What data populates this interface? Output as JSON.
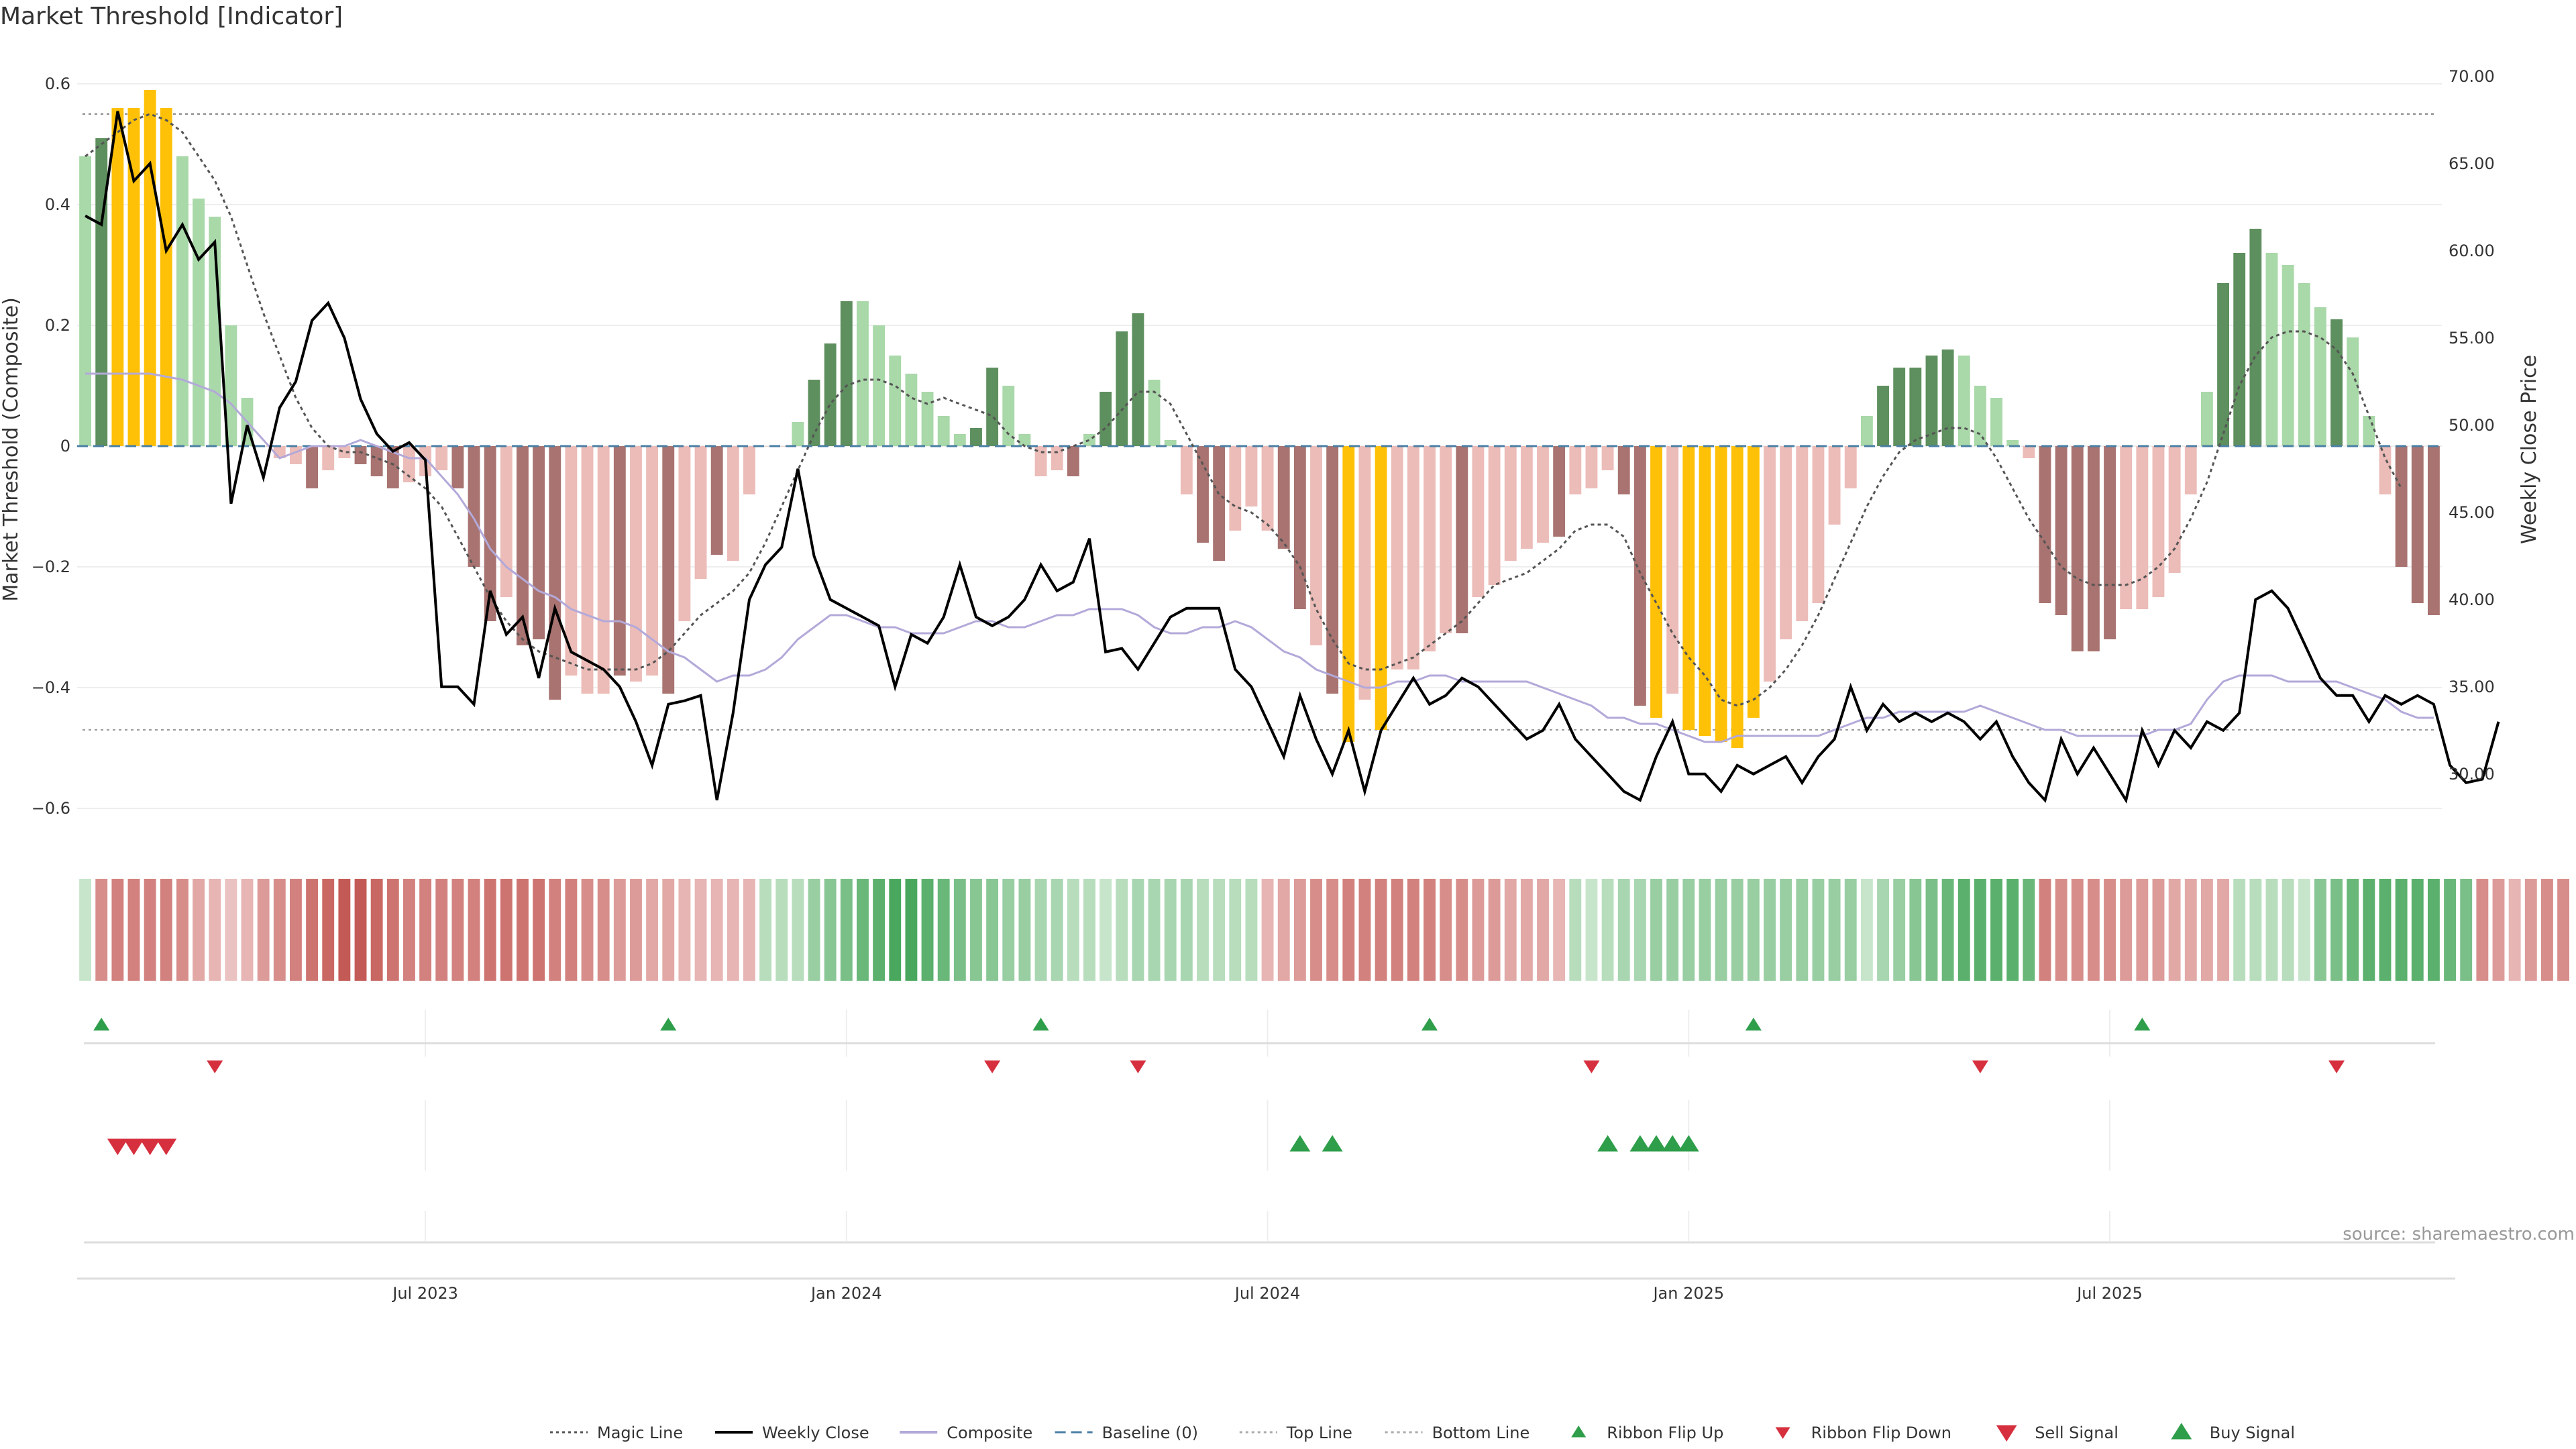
{
  "title": "Market Threshold [Indicator]",
  "source_note": "source: sharemaestro.com",
  "colors": {
    "strong_green": "#5e8f5e",
    "light_green": "#a9d8a9",
    "strong_red": "#a87370",
    "light_red": "#ecbcb8",
    "extreme": "#ffc107",
    "magic": "#555555",
    "close": "#000000",
    "composite": "#b3a9d9",
    "baseline": "#4a7fa5",
    "guide": "#888888",
    "up_marker": "#2e9e4a",
    "down_marker": "#d6303f"
  },
  "chart_data": {
    "type": "bar",
    "title": "Market Threshold [Indicator]",
    "xlabel": "",
    "ylabel": "Market Threshold (Composite)",
    "ylabel_right": "Weekly Close Price",
    "ylim": [
      -0.65,
      0.65
    ],
    "yticks": [
      -0.6,
      -0.4,
      -0.2,
      0,
      0.2,
      0.4,
      0.6
    ],
    "ytick_labels": [
      "−0.6",
      "−0.4",
      "−0.2",
      "0",
      "0.2",
      "0.4",
      "0.6"
    ],
    "ylim_right": [
      26.3,
      71.3
    ],
    "yticks_right": [
      30,
      35,
      40,
      45,
      50,
      55,
      60,
      65,
      70
    ],
    "ytick_labels_right": [
      "30.00",
      "35.00",
      "40.00",
      "45.00",
      "50.00",
      "55.00",
      "60.00",
      "65.00",
      "70.00"
    ],
    "x_start": "2023-02-06",
    "x_end": "2025-10-27",
    "xticks": [
      {
        "label": "Jul 2023",
        "week": 21
      },
      {
        "label": "Jan 2024",
        "week": 47
      },
      {
        "label": "Jul 2024",
        "week": 73
      },
      {
        "label": "Jan 2025",
        "week": 99
      },
      {
        "label": "Jul 2025",
        "week": 125
      }
    ],
    "top_line": 0.55,
    "bottom_line": -0.47,
    "bars": [
      0.48,
      0.51,
      0.56,
      0.56,
      0.59,
      0.56,
      0.48,
      0.41,
      0.38,
      0.2,
      0.08,
      0.0,
      -0.02,
      -0.03,
      -0.07,
      -0.04,
      -0.02,
      -0.03,
      -0.05,
      -0.07,
      -0.06,
      -0.05,
      -0.04,
      -0.07,
      -0.2,
      -0.29,
      -0.25,
      -0.33,
      -0.32,
      -0.42,
      -0.38,
      -0.41,
      -0.41,
      -0.38,
      -0.39,
      -0.38,
      -0.41,
      -0.29,
      -0.22,
      -0.18,
      -0.19,
      -0.08,
      0.0,
      0.0,
      0.04,
      0.11,
      0.17,
      0.24,
      0.24,
      0.2,
      0.15,
      0.12,
      0.09,
      0.05,
      0.02,
      0.03,
      0.13,
      0.1,
      0.02,
      -0.05,
      -0.04,
      -0.05,
      0.02,
      0.09,
      0.19,
      0.22,
      0.11,
      0.01,
      -0.08,
      -0.16,
      -0.19,
      -0.14,
      -0.1,
      -0.14,
      -0.17,
      -0.27,
      -0.33,
      -0.41,
      -0.49,
      -0.42,
      -0.47,
      -0.37,
      -0.37,
      -0.34,
      -0.31,
      -0.31,
      -0.25,
      -0.23,
      -0.19,
      -0.17,
      -0.16,
      -0.15,
      -0.08,
      -0.07,
      -0.04,
      -0.08,
      -0.43,
      -0.45,
      -0.41,
      -0.47,
      -0.48,
      -0.49,
      -0.5,
      -0.45,
      -0.39,
      -0.32,
      -0.29,
      -0.26,
      -0.13,
      -0.07,
      0.05,
      0.1,
      0.13,
      0.13,
      0.15,
      0.16,
      0.15,
      0.1,
      0.08,
      0.01,
      -0.02,
      -0.26,
      -0.28,
      -0.34,
      -0.34,
      -0.32,
      -0.27,
      -0.27,
      -0.25,
      -0.21,
      -0.08,
      0.09,
      0.27,
      0.32,
      0.36,
      0.32,
      0.3,
      0.27,
      0.23,
      0.21,
      0.18,
      0.05,
      -0.08,
      -0.2,
      -0.26,
      -0.28
    ],
    "bar_categories": [
      "light_green",
      "strong_green",
      "extreme",
      "extreme",
      "extreme",
      "extreme",
      "light_green",
      "light_green",
      "light_green",
      "light_green",
      "light_green",
      "light_red",
      "light_red",
      "light_red",
      "strong_red",
      "light_red",
      "light_red",
      "strong_red",
      "strong_red",
      "strong_red",
      "light_red",
      "light_red",
      "light_red",
      "strong_red",
      "strong_red",
      "strong_red",
      "light_red",
      "strong_red",
      "strong_red",
      "strong_red",
      "light_red",
      "light_red",
      "light_red",
      "strong_red",
      "light_red",
      "light_red",
      "strong_red",
      "light_red",
      "light_red",
      "strong_red",
      "light_red",
      "light_red",
      "light_red",
      "light_red",
      "light_green",
      "strong_green",
      "strong_green",
      "strong_green",
      "light_green",
      "light_green",
      "light_green",
      "light_green",
      "light_green",
      "light_green",
      "light_green",
      "strong_green",
      "strong_green",
      "light_green",
      "light_green",
      "light_red",
      "light_red",
      "strong_red",
      "light_green",
      "strong_green",
      "strong_green",
      "strong_green",
      "light_green",
      "light_green",
      "light_red",
      "strong_red",
      "strong_red",
      "light_red",
      "light_red",
      "light_red",
      "strong_red",
      "strong_red",
      "light_red",
      "strong_red",
      "extreme",
      "light_red",
      "extreme",
      "light_red",
      "light_red",
      "light_red",
      "light_red",
      "strong_red",
      "light_red",
      "light_red",
      "light_red",
      "light_red",
      "light_red",
      "strong_red",
      "light_red",
      "light_red",
      "light_red",
      "strong_red",
      "strong_red",
      "extreme",
      "light_red",
      "extreme",
      "extreme",
      "extreme",
      "extreme",
      "extreme",
      "light_red",
      "light_red",
      "light_red",
      "light_red",
      "light_red",
      "light_red",
      "light_green",
      "strong_green",
      "strong_green",
      "strong_green",
      "strong_green",
      "strong_green",
      "light_green",
      "light_green",
      "light_green",
      "light_green",
      "light_red",
      "strong_red",
      "strong_red",
      "strong_red",
      "strong_red",
      "strong_red",
      "light_red",
      "light_red",
      "light_red",
      "light_red",
      "light_red",
      "light_green",
      "strong_green",
      "strong_green",
      "strong_green",
      "light_green",
      "light_green",
      "light_green",
      "light_green",
      "strong_green",
      "light_green",
      "light_green",
      "light_red",
      "strong_red",
      "strong_red",
      "strong_red"
    ],
    "series": [
      {
        "name": "Weekly Close",
        "axis": "right",
        "values": [
          62.0,
          61.5,
          68.0,
          64.0,
          65.0,
          60.0,
          61.5,
          59.5,
          60.5,
          45.5,
          50.0,
          47.0,
          51.0,
          52.5,
          56.0,
          57.0,
          55.0,
          51.5,
          49.5,
          48.5,
          49.0,
          48.0,
          35.0,
          35.0,
          34.0,
          40.5,
          38.0,
          39.0,
          35.5,
          39.5,
          37.0,
          36.5,
          36.0,
          35.0,
          33.0,
          30.5,
          34.0,
          34.2,
          34.5,
          28.5,
          33.5,
          40.0,
          42.0,
          43.0,
          47.5,
          42.5,
          40.0,
          39.5,
          39.0,
          38.5,
          35.0,
          38.0,
          37.5,
          39.0,
          42.0,
          39.0,
          38.5,
          39.0,
          40.0,
          42.0,
          40.5,
          41.0,
          43.5,
          37.0,
          37.2,
          36.0,
          37.5,
          39.0,
          39.5,
          39.5,
          39.5,
          36.0,
          35.0,
          33.0,
          31.0,
          34.5,
          32.0,
          30.0,
          32.5,
          29.0,
          32.5,
          34.0,
          35.5,
          34.0,
          34.5,
          35.5,
          35.0,
          34.0,
          33.0,
          32.0,
          32.5,
          34.0,
          32.0,
          31.0,
          30.0,
          29.0,
          28.5,
          31.0,
          33.0,
          30.0,
          30.0,
          29.0,
          30.5,
          30.0,
          30.5,
          31.0,
          29.5,
          31.0,
          32.0,
          35.0,
          32.5,
          34.0,
          33.0,
          33.5,
          33.0,
          33.5,
          33.0,
          32.0,
          33.0,
          31.0,
          29.5,
          28.5,
          32.0,
          30.0,
          31.5,
          30.0,
          28.5,
          32.5,
          30.5,
          32.5,
          31.5,
          33.0,
          32.5,
          33.5,
          40.0,
          40.5,
          39.5,
          37.5,
          35.5,
          34.5,
          34.5,
          33.0,
          34.5,
          34.0,
          34.5,
          34.0,
          30.5,
          29.5,
          29.7,
          33.0
        ]
      },
      {
        "name": "Composite",
        "axis": "left",
        "values": [
          0.12,
          0.12,
          0.12,
          0.12,
          0.12,
          0.115,
          0.11,
          0.1,
          0.09,
          0.07,
          0.04,
          0.01,
          -0.02,
          -0.01,
          0.0,
          0.0,
          0.0,
          0.01,
          0.0,
          -0.01,
          -0.02,
          -0.02,
          -0.05,
          -0.08,
          -0.12,
          -0.17,
          -0.2,
          -0.22,
          -0.24,
          -0.25,
          -0.27,
          -0.28,
          -0.29,
          -0.29,
          -0.3,
          -0.32,
          -0.34,
          -0.35,
          -0.37,
          -0.39,
          -0.38,
          -0.38,
          -0.37,
          -0.35,
          -0.32,
          -0.3,
          -0.28,
          -0.28,
          -0.29,
          -0.3,
          -0.3,
          -0.31,
          -0.31,
          -0.31,
          -0.3,
          -0.29,
          -0.29,
          -0.3,
          -0.3,
          -0.29,
          -0.28,
          -0.28,
          -0.27,
          -0.27,
          -0.27,
          -0.28,
          -0.3,
          -0.31,
          -0.31,
          -0.3,
          -0.3,
          -0.29,
          -0.3,
          -0.32,
          -0.34,
          -0.35,
          -0.37,
          -0.38,
          -0.39,
          -0.4,
          -0.4,
          -0.39,
          -0.39,
          -0.38,
          -0.38,
          -0.39,
          -0.39,
          -0.39,
          -0.39,
          -0.39,
          -0.4,
          -0.41,
          -0.42,
          -0.43,
          -0.45,
          -0.45,
          -0.46,
          -0.46,
          -0.47,
          -0.48,
          -0.49,
          -0.49,
          -0.48,
          -0.48,
          -0.48,
          -0.48,
          -0.48,
          -0.48,
          -0.47,
          -0.46,
          -0.45,
          -0.45,
          -0.44,
          -0.44,
          -0.44,
          -0.44,
          -0.44,
          -0.43,
          -0.44,
          -0.45,
          -0.46,
          -0.47,
          -0.47,
          -0.48,
          -0.48,
          -0.48,
          -0.48,
          -0.48,
          -0.47,
          -0.47,
          -0.46,
          -0.42,
          -0.39,
          -0.38,
          -0.38,
          -0.38,
          -0.39,
          -0.39,
          -0.39,
          -0.39,
          -0.4,
          -0.41,
          -0.42,
          -0.44,
          -0.45,
          -0.45
        ]
      },
      {
        "name": "Magic Line",
        "axis": "left",
        "values": [
          0.48,
          0.5,
          0.52,
          0.54,
          0.55,
          0.54,
          0.52,
          0.48,
          0.44,
          0.38,
          0.3,
          0.22,
          0.15,
          0.08,
          0.03,
          0.0,
          -0.01,
          -0.01,
          -0.02,
          -0.03,
          -0.05,
          -0.07,
          -0.1,
          -0.15,
          -0.2,
          -0.25,
          -0.29,
          -0.32,
          -0.34,
          -0.35,
          -0.36,
          -0.37,
          -0.37,
          -0.37,
          -0.37,
          -0.36,
          -0.34,
          -0.31,
          -0.28,
          -0.26,
          -0.24,
          -0.21,
          -0.16,
          -0.1,
          -0.04,
          0.02,
          0.07,
          0.1,
          0.11,
          0.11,
          0.1,
          0.08,
          0.07,
          0.08,
          0.07,
          0.06,
          0.05,
          0.02,
          0.0,
          -0.01,
          -0.01,
          0.0,
          0.01,
          0.03,
          0.06,
          0.09,
          0.09,
          0.07,
          0.02,
          -0.03,
          -0.08,
          -0.1,
          -0.11,
          -0.13,
          -0.16,
          -0.2,
          -0.27,
          -0.32,
          -0.36,
          -0.37,
          -0.37,
          -0.36,
          -0.35,
          -0.33,
          -0.31,
          -0.29,
          -0.26,
          -0.23,
          -0.22,
          -0.21,
          -0.19,
          -0.17,
          -0.14,
          -0.13,
          -0.13,
          -0.15,
          -0.21,
          -0.26,
          -0.31,
          -0.35,
          -0.38,
          -0.42,
          -0.43,
          -0.42,
          -0.4,
          -0.37,
          -0.33,
          -0.28,
          -0.22,
          -0.16,
          -0.1,
          -0.05,
          -0.01,
          0.01,
          0.02,
          0.03,
          0.03,
          0.02,
          -0.02,
          -0.07,
          -0.12,
          -0.16,
          -0.2,
          -0.22,
          -0.23,
          -0.23,
          -0.23,
          -0.22,
          -0.2,
          -0.17,
          -0.12,
          -0.06,
          0.02,
          0.1,
          0.15,
          0.18,
          0.19,
          0.19,
          0.18,
          0.16,
          0.12,
          0.05,
          -0.02,
          -0.07
        ]
      }
    ],
    "ribbon": [
      1,
      -1,
      -1,
      -1,
      -1,
      -1,
      -1,
      -1,
      -1,
      -1,
      -1,
      -1,
      -1,
      -1,
      -1,
      -1,
      -1,
      -1,
      -1,
      -1,
      -1,
      -1,
      -1,
      -1,
      -1,
      -1,
      -1,
      -1,
      -1,
      -1,
      -1,
      -1,
      -1,
      -1,
      -1,
      -1,
      -1,
      -1,
      -1,
      -1,
      -1,
      -1,
      1,
      1,
      1,
      1,
      1,
      1,
      1,
      1,
      1,
      1,
      1,
      1,
      1,
      1,
      1,
      1,
      1,
      1,
      1,
      1,
      1,
      1,
      1,
      1,
      1,
      1,
      1,
      1,
      1,
      1,
      1,
      -1,
      -1,
      -1,
      -1,
      -1,
      -1,
      -1,
      -1,
      -1,
      -1,
      -1,
      -1,
      -1,
      -1,
      -1,
      -1,
      -1,
      -1,
      -1,
      1,
      1,
      1,
      1,
      1,
      1,
      1,
      1,
      1,
      1,
      1,
      1,
      1,
      1,
      1,
      1,
      1,
      1,
      1,
      1,
      1,
      1,
      1,
      1,
      1,
      1,
      1,
      1,
      1,
      -1,
      -1,
      -1,
      -1,
      -1,
      -1,
      -1,
      -1,
      -1,
      -1,
      -1,
      -1,
      1,
      1,
      1,
      1,
      1,
      1,
      1,
      1,
      1,
      1,
      1,
      1,
      1,
      1,
      1,
      -1,
      -1,
      -1,
      -1,
      -1,
      -1
    ],
    "ribbon_strength": [
      0.2,
      0.6,
      0.7,
      0.7,
      0.7,
      0.7,
      0.6,
      0.4,
      0.3,
      0.2,
      0.3,
      0.5,
      0.6,
      0.7,
      0.8,
      0.9,
      1.0,
      1.0,
      0.9,
      0.8,
      0.7,
      0.7,
      0.7,
      0.7,
      0.7,
      0.8,
      0.8,
      0.8,
      0.8,
      0.7,
      0.7,
      0.6,
      0.6,
      0.5,
      0.5,
      0.4,
      0.4,
      0.3,
      0.3,
      0.3,
      0.3,
      0.3,
      0.3,
      0.3,
      0.3,
      0.5,
      0.6,
      0.7,
      0.8,
      0.9,
      1.0,
      1.0,
      0.9,
      0.8,
      0.7,
      0.6,
      0.6,
      0.5,
      0.5,
      0.4,
      0.4,
      0.3,
      0.3,
      0.2,
      0.3,
      0.4,
      0.4,
      0.4,
      0.4,
      0.3,
      0.3,
      0.3,
      0.3,
      0.3,
      0.4,
      0.5,
      0.6,
      0.6,
      0.7,
      0.7,
      0.7,
      0.7,
      0.7,
      0.7,
      0.6,
      0.6,
      0.5,
      0.5,
      0.4,
      0.4,
      0.4,
      0.3,
      0.3,
      0.2,
      0.3,
      0.4,
      0.4,
      0.5,
      0.5,
      0.5,
      0.5,
      0.5,
      0.5,
      0.5,
      0.5,
      0.5,
      0.5,
      0.5,
      0.5,
      0.5,
      0.2,
      0.4,
      0.5,
      0.6,
      0.7,
      0.8,
      0.9,
      0.9,
      0.9,
      0.9,
      0.8,
      0.7,
      0.6,
      0.6,
      0.6,
      0.6,
      0.5,
      0.5,
      0.5,
      0.4,
      0.4,
      0.4,
      0.4,
      0.3,
      0.3,
      0.3,
      0.3,
      0.2,
      0.6,
      0.7,
      0.8,
      0.9,
      0.9,
      0.9,
      0.9,
      0.9,
      0.8,
      0.7,
      0.6,
      0.5,
      0.3,
      0.5,
      0.6,
      0.6,
      0.6,
      0.6
    ],
    "ribbon_flip_up": [
      1,
      36,
      59,
      83,
      103,
      127
    ],
    "ribbon_flip_down": [
      8,
      56,
      65,
      93,
      117,
      139
    ],
    "sell_signals": [
      2,
      3,
      4,
      5
    ],
    "buy_signals": [
      75,
      77,
      94,
      96,
      97,
      98,
      99
    ],
    "legend": [
      {
        "label": "Magic Line",
        "kind": "dotted",
        "color": "#555555"
      },
      {
        "label": "Weekly Close",
        "kind": "line",
        "color": "#000000"
      },
      {
        "label": "Composite",
        "kind": "line",
        "color": "#b3a9d9"
      },
      {
        "label": "Baseline (0)",
        "kind": "dashed",
        "color": "#4a7fa5"
      },
      {
        "label": "Top Line",
        "kind": "dotted",
        "color": "#aaaaaa"
      },
      {
        "label": "Bottom Line",
        "kind": "dotted",
        "color": "#aaaaaa"
      },
      {
        "label": "Ribbon Flip Up",
        "kind": "tri-up-small",
        "color": "#2e9e4a"
      },
      {
        "label": "Ribbon Flip Down",
        "kind": "tri-down-small",
        "color": "#d6303f"
      },
      {
        "label": "Sell Signal",
        "kind": "tri-down",
        "color": "#d6303f"
      },
      {
        "label": "Buy Signal",
        "kind": "tri-up",
        "color": "#2e9e4a"
      }
    ],
    "legend_location": "bottom-center"
  }
}
